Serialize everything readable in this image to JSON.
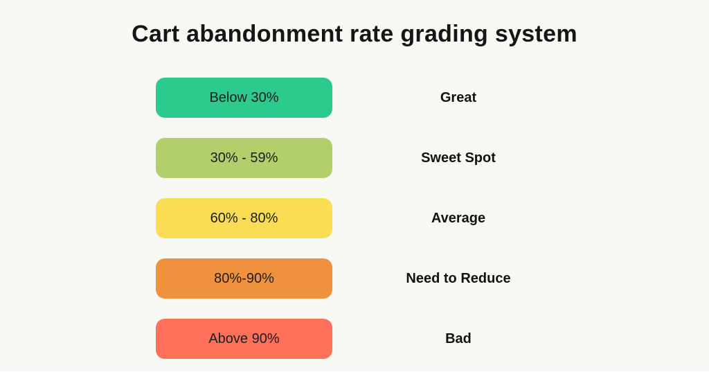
{
  "title": "Cart abandonment rate grading system",
  "background": "#F8F8F5",
  "rows": [
    {
      "range": "Below 30%",
      "grade": "Great",
      "color": "#2DCA8E"
    },
    {
      "range": "30% - 59%",
      "grade": "Sweet Spot",
      "color": "#B2CF6C"
    },
    {
      "range": "60% - 80%",
      "grade": "Average",
      "color": "#FADC55"
    },
    {
      "range": "80%-90%",
      "grade": "Need to Reduce",
      "color": "#F0913E"
    },
    {
      "range": "Above 90%",
      "grade": "Bad",
      "color": "#FF715B"
    }
  ]
}
